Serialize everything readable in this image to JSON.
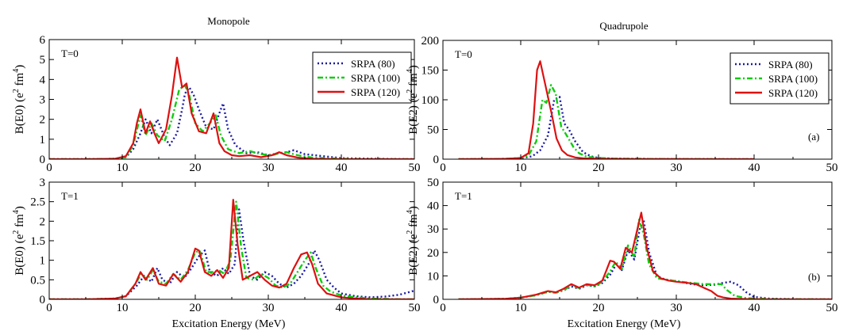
{
  "columns": [
    {
      "title": "Monopole"
    },
    {
      "title": "Quadrupole"
    }
  ],
  "x_axis_label": "Excitation Energy (MeV)",
  "chart_data": [
    {
      "type": "line",
      "column": "Monopole",
      "label": "T=0",
      "tag": "",
      "ylabel_main": "B(E0) (e",
      "ylabel_sup1": "2",
      "ylabel_mid": " fm",
      "ylabel_sup2": "4",
      "ylabel_end": ")",
      "xlim": [
        0,
        50
      ],
      "ylim": [
        0,
        6
      ],
      "xticks": [
        0,
        10,
        20,
        30,
        40,
        50
      ],
      "yticks": [
        0,
        1,
        2,
        3,
        4,
        5,
        6
      ],
      "legend": "top-right",
      "series": [
        {
          "name": "SRPA (80)",
          "color": "#1a1aa6",
          "dash": "dotted",
          "x": [
            0,
            5,
            9,
            10.5,
            11.5,
            12.5,
            13.2,
            14,
            14.8,
            15.8,
            16.5,
            17.5,
            18.2,
            18.6,
            19.2,
            19.8,
            20.5,
            21.5,
            22.5,
            23.2,
            23.8,
            24.5,
            25.5,
            27,
            28.5,
            30,
            31.5,
            32.5,
            33.5,
            35,
            40,
            45,
            50
          ],
          "y": [
            0,
            0,
            0.02,
            0.1,
            0.5,
            1.3,
            2.0,
            1.3,
            2.0,
            1.1,
            0.7,
            1.3,
            2.5,
            3.3,
            3.6,
            3.2,
            2.5,
            1.6,
            1.5,
            2.2,
            2.8,
            1.5,
            0.7,
            0.3,
            0.35,
            0.2,
            0.3,
            0.35,
            0.45,
            0.25,
            0.05,
            0.02,
            0
          ]
        },
        {
          "name": "SRPA (100)",
          "color": "#11cc11",
          "dash": "dashdot",
          "x": [
            0,
            5,
            9,
            10.5,
            11.5,
            12.5,
            13.2,
            14,
            14.8,
            15.8,
            16.8,
            17.8,
            18.6,
            19.2,
            20,
            21,
            22,
            22.8,
            23.5,
            24.5,
            26,
            27.5,
            29,
            30.5,
            31.5,
            32.5,
            34,
            36,
            40,
            45,
            50
          ],
          "y": [
            0,
            0,
            0.02,
            0.1,
            0.7,
            2.2,
            1.2,
            1.8,
            1.2,
            0.9,
            2.0,
            3.5,
            3.7,
            3.2,
            1.8,
            1.4,
            1.8,
            2.2,
            1.2,
            0.5,
            0.3,
            0.4,
            0.25,
            0.2,
            0.3,
            0.35,
            0.2,
            0.08,
            0.02,
            0,
            0
          ]
        },
        {
          "name": "SRPA (120)",
          "color": "#dd1111",
          "dash": "solid",
          "x": [
            0,
            5,
            9,
            10.5,
            11.5,
            12,
            12.5,
            13.2,
            13.8,
            14.4,
            15,
            16,
            16.8,
            17.5,
            18.2,
            18.8,
            19.5,
            20.5,
            21.5,
            22.5,
            23.3,
            24,
            25,
            26,
            27.5,
            29,
            30.5,
            31.5,
            32.5,
            34,
            36,
            40,
            45,
            50
          ],
          "y": [
            0,
            0,
            0.02,
            0.15,
            0.8,
            1.8,
            2.5,
            1.3,
            1.9,
            1.3,
            0.8,
            1.5,
            3.2,
            5.1,
            3.6,
            3.8,
            2.3,
            1.4,
            1.3,
            2.3,
            0.8,
            0.4,
            0.2,
            0.15,
            0.2,
            0.1,
            0.2,
            0.35,
            0.2,
            0.08,
            0.02,
            0,
            0,
            0
          ]
        }
      ]
    },
    {
      "type": "line",
      "column": "Quadrupole",
      "label": "T=0",
      "tag": "(a)",
      "ylabel_main": "B(E2) (e",
      "ylabel_sup1": "2",
      "ylabel_mid": " fm",
      "ylabel_sup2": "4",
      "ylabel_end": ")",
      "xlim": [
        0,
        50
      ],
      "ylim": [
        0,
        200
      ],
      "xticks": [
        0,
        10,
        20,
        30,
        40,
        50
      ],
      "yticks": [
        0,
        50,
        100,
        150,
        200
      ],
      "legend": "top-right",
      "series": [
        {
          "name": "SRPA (80)",
          "color": "#1a1aa6",
          "dash": "dotted",
          "x": [
            2,
            8,
            10,
            11.5,
            12.5,
            13.5,
            14.3,
            15,
            15.6,
            16.2,
            17,
            18,
            19,
            20,
            22,
            25,
            30,
            35,
            40
          ],
          "y": [
            0,
            0.5,
            1.5,
            5,
            15,
            40,
            100,
            105,
            60,
            50,
            30,
            12,
            5,
            2,
            1,
            0.5,
            0.3,
            0.1,
            0
          ]
        },
        {
          "name": "SRPA (100)",
          "color": "#11cc11",
          "dash": "dashdot",
          "x": [
            2,
            8,
            10,
            11,
            12,
            12.8,
            13.3,
            13.9,
            14.5,
            15.2,
            16,
            16.8,
            17.5,
            18.5,
            20,
            22,
            25,
            30,
            40
          ],
          "y": [
            0,
            0.5,
            2,
            6,
            30,
            100,
            95,
            125,
            110,
            55,
            38,
            20,
            10,
            4,
            2,
            1,
            0.5,
            0.2,
            0
          ]
        },
        {
          "name": "SRPA (120)",
          "color": "#dd1111",
          "dash": "solid",
          "x": [
            2,
            8,
            10,
            11,
            11.6,
            12.1,
            12.5,
            13,
            13.5,
            14,
            14.6,
            15.3,
            16,
            17,
            18,
            20,
            25,
            30,
            40
          ],
          "y": [
            0,
            0.5,
            2,
            10,
            60,
            150,
            165,
            135,
            105,
            75,
            35,
            15,
            7,
            3,
            1.5,
            0.5,
            0.2,
            0.1,
            0
          ]
        }
      ]
    },
    {
      "type": "line",
      "column": "Monopole",
      "label": "T=1",
      "tag": "",
      "ylabel_main": "B(E0) (e",
      "ylabel_sup1": "2",
      "ylabel_mid": " fm",
      "ylabel_sup2": "4",
      "ylabel_end": ")",
      "xlim": [
        0,
        50
      ],
      "ylim": [
        0,
        3
      ],
      "xticks": [
        0,
        10,
        20,
        30,
        40,
        50
      ],
      "yticks": [
        0,
        0.5,
        1,
        1.5,
        2,
        2.5,
        3
      ],
      "legend": "none",
      "series": [
        {
          "name": "SRPA (80)",
          "color": "#1a1aa6",
          "dash": "dotted",
          "x": [
            0,
            5,
            9,
            10.5,
            12,
            13,
            14,
            14.8,
            15.5,
            16.5,
            17.5,
            18.5,
            19.5,
            20.5,
            21.3,
            22,
            23,
            23.8,
            24.6,
            25.4,
            26,
            26.6,
            27.5,
            28.5,
            29.5,
            30.5,
            31.5,
            32.5,
            33.5,
            34.5,
            35.5,
            36.3,
            37,
            38,
            39,
            40,
            42,
            44,
            46,
            48,
            50
          ],
          "y": [
            0,
            0,
            0.02,
            0.08,
            0.35,
            0.6,
            0.45,
            0.8,
            0.5,
            0.4,
            0.7,
            0.55,
            0.8,
            1.1,
            1.25,
            0.7,
            0.6,
            0.8,
            0.65,
            0.9,
            2.3,
            1.5,
            0.6,
            0.5,
            0.7,
            0.6,
            0.4,
            0.3,
            0.4,
            0.6,
            0.9,
            1.25,
            1.0,
            0.5,
            0.3,
            0.15,
            0.08,
            0.05,
            0.07,
            0.12,
            0.22
          ]
        },
        {
          "name": "SRPA (100)",
          "color": "#11cc11",
          "dash": "dashdot",
          "x": [
            0,
            5,
            9,
            10.5,
            11.8,
            12.6,
            13.4,
            14.2,
            15,
            16,
            17,
            18,
            19,
            20,
            20.6,
            21.5,
            22.5,
            23.2,
            24,
            24.8,
            25.6,
            26.3,
            27,
            28,
            29,
            30,
            31,
            32,
            33,
            34,
            35,
            35.8,
            36.5,
            37.5,
            38.5,
            40,
            42,
            44,
            46,
            48,
            50
          ],
          "y": [
            0,
            0,
            0.02,
            0.08,
            0.4,
            0.65,
            0.5,
            0.75,
            0.45,
            0.4,
            0.65,
            0.5,
            0.75,
            1.2,
            1.25,
            0.7,
            0.7,
            0.75,
            0.65,
            1.0,
            2.5,
            1.3,
            0.55,
            0.5,
            0.65,
            0.55,
            0.35,
            0.3,
            0.4,
            0.7,
            1.0,
            1.2,
            0.8,
            0.35,
            0.2,
            0.1,
            0.05,
            0.02,
            0.01,
            0,
            0
          ]
        },
        {
          "name": "SRPA (120)",
          "color": "#dd1111",
          "dash": "solid",
          "x": [
            0,
            5,
            9,
            10.5,
            11.8,
            12.5,
            13.2,
            14.2,
            15,
            16,
            17,
            18,
            19,
            20,
            20.5,
            21.3,
            22.2,
            23,
            23.8,
            24.6,
            25.2,
            25.8,
            26.5,
            27.5,
            28.5,
            29.5,
            30.5,
            31.5,
            32.5,
            33.5,
            34.5,
            35.3,
            36,
            36.8,
            38,
            40,
            42,
            44,
            46,
            48,
            50
          ],
          "y": [
            0,
            0,
            0.02,
            0.08,
            0.4,
            0.7,
            0.5,
            0.8,
            0.4,
            0.35,
            0.65,
            0.45,
            0.7,
            1.3,
            1.25,
            0.7,
            0.6,
            0.75,
            0.55,
            0.8,
            2.55,
            1.4,
            0.5,
            0.6,
            0.7,
            0.5,
            0.35,
            0.3,
            0.4,
            0.8,
            1.15,
            1.2,
            0.9,
            0.4,
            0.15,
            0.05,
            0.02,
            0,
            0,
            0,
            0
          ]
        }
      ]
    },
    {
      "type": "line",
      "column": "Quadrupole",
      "label": "T=1",
      "tag": "(b)",
      "ylabel_main": "B(E2) (e",
      "ylabel_sup1": "2",
      "ylabel_mid": " fm",
      "ylabel_sup2": "4",
      "ylabel_end": ")",
      "xlim": [
        0,
        50
      ],
      "ylim": [
        0,
        50
      ],
      "xticks": [
        0,
        10,
        20,
        30,
        40,
        50
      ],
      "yticks": [
        0,
        10,
        20,
        30,
        40,
        50
      ],
      "legend": "none",
      "series": [
        {
          "name": "SRPA (80)",
          "color": "#1a1aa6",
          "dash": "dotted",
          "x": [
            2,
            8,
            10,
            12,
            13.5,
            14.5,
            15.5,
            16.5,
            17.5,
            18.5,
            19.5,
            20.5,
            21.5,
            22.3,
            23,
            23.8,
            24.6,
            25.3,
            25.8,
            26.5,
            27.5,
            28.5,
            29.5,
            30.5,
            32,
            33.5,
            35,
            36,
            37,
            38,
            39,
            40,
            42,
            45,
            50
          ],
          "y": [
            0,
            0.2,
            0.7,
            1.8,
            3.2,
            2.8,
            3.8,
            5.5,
            4.5,
            6,
            5.5,
            7,
            10.5,
            15,
            12.5,
            21,
            17,
            30,
            34,
            20,
            10,
            8.5,
            8,
            7.5,
            6.5,
            6,
            6.3,
            7,
            7.5,
            6,
            3,
            1,
            0.3,
            0.1,
            0
          ]
        },
        {
          "name": "SRPA (100)",
          "color": "#11cc11",
          "dash": "dashdot",
          "x": [
            2,
            8,
            10,
            12,
            13.5,
            14.5,
            15.5,
            16.5,
            17.5,
            18.5,
            19.5,
            20.5,
            21.5,
            22.2,
            23,
            23.8,
            24.6,
            25.2,
            25.8,
            26.5,
            27.5,
            28.5,
            29.5,
            30.5,
            32,
            33.5,
            35,
            35.8,
            36.5,
            37.5,
            39,
            42,
            50
          ],
          "y": [
            0,
            0.2,
            0.7,
            1.8,
            3.2,
            2.8,
            3.8,
            6,
            4.8,
            6.2,
            5.5,
            7.5,
            12,
            16,
            13,
            23,
            18,
            34,
            28,
            15,
            9,
            8.5,
            8,
            7.5,
            7,
            6.5,
            6.5,
            6.5,
            4,
            1.5,
            0.5,
            0.1,
            0
          ]
        },
        {
          "name": "SRPA (120)",
          "color": "#dd1111",
          "dash": "solid",
          "x": [
            2,
            8,
            10,
            12,
            13.5,
            14.5,
            15.5,
            16.5,
            17.5,
            18.5,
            19.5,
            20.5,
            21.5,
            22,
            22.8,
            23.5,
            24.3,
            25,
            25.5,
            26.2,
            27,
            28,
            29,
            30,
            31.5,
            32.5,
            33.5,
            34.5,
            35.3,
            36,
            37,
            39,
            42,
            50
          ],
          "y": [
            0,
            0.2,
            0.7,
            2,
            3.5,
            3,
            4.5,
            6.5,
            5,
            6.5,
            6,
            8,
            16.5,
            16,
            13,
            22,
            20,
            30,
            37,
            22,
            12,
            9,
            8,
            7.5,
            7,
            6.5,
            5,
            3.5,
            1.5,
            0.8,
            0.3,
            0.1,
            0,
            0
          ]
        }
      ]
    }
  ]
}
